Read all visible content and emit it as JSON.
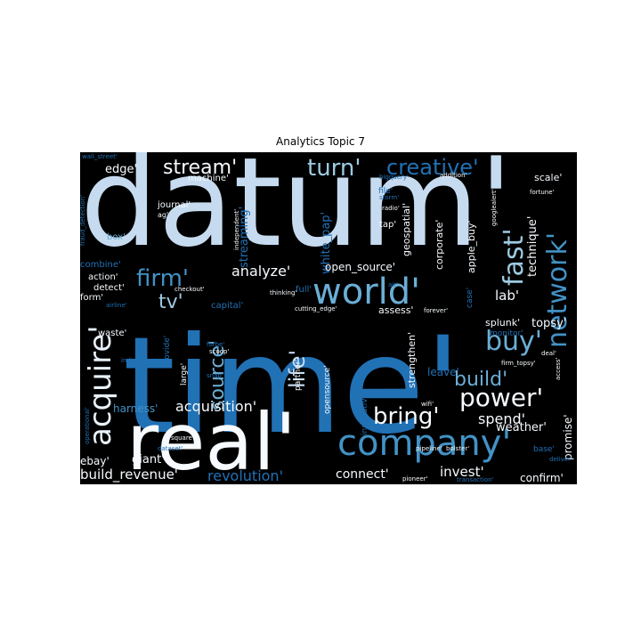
{
  "figure": {
    "title": "Analytics Topic 7"
  },
  "chart_data": {
    "type": "wordcloud",
    "title": "Analytics Topic 7",
    "background": "#000000",
    "palette": [
      "#08306b",
      "#2171b5",
      "#4292c6",
      "#9ecae1",
      "#c6dbef",
      "#ffffff"
    ],
    "words": [
      {
        "text": "datum'",
        "weight": 100,
        "color": "#c6dbef"
      },
      {
        "text": "time'",
        "weight": 98,
        "color": "#2171b5"
      },
      {
        "text": "real'",
        "weight": 70,
        "color": "#f7fbff"
      },
      {
        "text": "company'",
        "weight": 40,
        "color": "#4292c6"
      },
      {
        "text": "world'",
        "weight": 34,
        "color": "#6baed6"
      },
      {
        "text": "acquire'",
        "weight": 30,
        "color": "#e8f1fa"
      },
      {
        "text": "network'",
        "weight": 30,
        "color": "#4292c6"
      },
      {
        "text": "fast'",
        "weight": 28,
        "color": "#9ecae1"
      },
      {
        "text": "buy'",
        "weight": 28,
        "color": "#6baed6"
      },
      {
        "text": "power'",
        "weight": 26,
        "color": "#f7fbff"
      },
      {
        "text": "turn'",
        "weight": 24,
        "color": "#9ecae1"
      },
      {
        "text": "bring'",
        "weight": 24,
        "color": "#f7fbff"
      },
      {
        "text": "creative'",
        "weight": 22,
        "color": "#2171b5"
      },
      {
        "text": "firm'",
        "weight": 22,
        "color": "#4292c6"
      },
      {
        "text": "life'",
        "weight": 22,
        "color": "#c6dbef"
      },
      {
        "text": "build'",
        "weight": 22,
        "color": "#6baed6"
      },
      {
        "text": "stream'",
        "weight": 20,
        "color": "#f7fbff"
      },
      {
        "text": "source'",
        "weight": 20,
        "color": "#6baed6"
      },
      {
        "text": "tv'",
        "weight": 20,
        "color": "#9ecae1"
      },
      {
        "text": "acquisition'",
        "weight": 14,
        "color": "#f7fbff"
      },
      {
        "text": "analyze'",
        "weight": 13,
        "color": "#f7fbff"
      },
      {
        "text": "spend'",
        "weight": 14,
        "color": "#f7fbff"
      },
      {
        "text": "revolution'",
        "weight": 13,
        "color": "#2171b5"
      },
      {
        "text": "build_revenue'",
        "weight": 13,
        "color": "#f7fbff"
      },
      {
        "text": "connect'",
        "weight": 12,
        "color": "#f7fbff"
      },
      {
        "text": "invest'",
        "weight": 12,
        "color": "#f7fbff"
      },
      {
        "text": "weather'",
        "weight": 11,
        "color": "#f7fbff"
      },
      {
        "text": "promise'",
        "weight": 11,
        "color": "#f7fbff"
      },
      {
        "text": "technique'",
        "weight": 11,
        "color": "#f7fbff"
      },
      {
        "text": "topsy'",
        "weight": 11,
        "color": "#f7fbff"
      },
      {
        "text": "lab'",
        "weight": 12,
        "color": "#f7fbff"
      },
      {
        "text": "streaming'",
        "weight": 12,
        "color": "#2171b5"
      },
      {
        "text": "white_pap'",
        "weight": 12,
        "color": "#2171b5"
      },
      {
        "text": "open_source'",
        "weight": 11,
        "color": "#f7fbff"
      },
      {
        "text": "edge'",
        "weight": 11,
        "color": "#f7fbff"
      },
      {
        "text": "giant'",
        "weight": 11,
        "color": "#f7fbff"
      },
      {
        "text": "ebay'",
        "weight": 11,
        "color": "#f7fbff"
      },
      {
        "text": "harness'",
        "weight": 11,
        "color": "#4292c6"
      },
      {
        "text": "confirm'",
        "weight": 10,
        "color": "#f7fbff"
      },
      {
        "text": "leave'",
        "weight": 10,
        "color": "#2171b5"
      },
      {
        "text": "splunk'",
        "weight": 10,
        "color": "#f7fbff"
      },
      {
        "text": "assess'",
        "weight": 10,
        "color": "#f7fbff"
      },
      {
        "text": "strengthen'",
        "weight": 10,
        "color": "#f7fbff"
      },
      {
        "text": "geospatial'",
        "weight": 10,
        "color": "#f7fbff"
      },
      {
        "text": "corporate'",
        "weight": 9,
        "color": "#f7fbff"
      },
      {
        "text": "apple_buy'",
        "weight": 9,
        "color": "#f7fbff"
      },
      {
        "text": "scale'",
        "weight": 9,
        "color": "#f7fbff"
      },
      {
        "text": "machine'",
        "weight": 9,
        "color": "#f7fbff"
      },
      {
        "text": "journal'",
        "weight": 9,
        "color": "#f7fbff"
      },
      {
        "text": "box'",
        "weight": 9,
        "color": "#6baed6"
      },
      {
        "text": "combine'",
        "weight": 9,
        "color": "#2171b5"
      },
      {
        "text": "action'",
        "weight": 9,
        "color": "#f7fbff"
      },
      {
        "text": "detect'",
        "weight": 9,
        "color": "#f7fbff"
      },
      {
        "text": "form'",
        "weight": 9,
        "color": "#f7fbff"
      },
      {
        "text": "waste'",
        "weight": 9,
        "color": "#f7fbff"
      },
      {
        "text": "capital'",
        "weight": 9,
        "color": "#2171b5"
      },
      {
        "text": "full'",
        "weight": 9,
        "color": "#2171b5"
      },
      {
        "text": "partner'",
        "weight": 8,
        "color": "#f7fbff"
      },
      {
        "text": "opensource'",
        "weight": 8,
        "color": "#f7fbff"
      },
      {
        "text": "innovative'",
        "weight": 8,
        "color": "#2171b5"
      },
      {
        "text": "large'",
        "weight": 8,
        "color": "#f7fbff"
      },
      {
        "text": "provide'",
        "weight": 8,
        "color": "#2171b5"
      },
      {
        "text": "monitor'",
        "weight": 8,
        "color": "#2171b5"
      },
      {
        "text": "case'",
        "weight": 8,
        "color": "#2171b5"
      },
      {
        "text": "base'",
        "weight": 8,
        "color": "#2171b5"
      },
      {
        "text": "tap'",
        "weight": 8,
        "color": "#f7fbff"
      },
      {
        "text": "file'",
        "weight": 7,
        "color": "#2171b5"
      },
      {
        "text": "deal'",
        "weight": 6,
        "color": "#f7fbff"
      },
      {
        "text": "access'",
        "weight": 6,
        "color": "#f7fbff"
      },
      {
        "text": "deliver'",
        "weight": 6,
        "color": "#2171b5"
      },
      {
        "text": "independent'",
        "weight": 6,
        "color": "#f7fbff"
      },
      {
        "text": "cutting_edge'",
        "weight": 6,
        "color": "#f7fbff"
      },
      {
        "text": "checkout'",
        "weight": 6,
        "color": "#f7fbff"
      },
      {
        "text": "thinking'",
        "weight": 6,
        "color": "#f7fbff"
      },
      {
        "text": "forever'",
        "weight": 6,
        "color": "#f7fbff"
      },
      {
        "text": "airline'",
        "weight": 6,
        "color": "#2171b5"
      },
      {
        "text": "forbe'",
        "weight": 6,
        "color": "#2171b5"
      },
      {
        "text": "scoop'",
        "weight": 6,
        "color": "#f7fbff"
      },
      {
        "text": "snap'",
        "weight": 6,
        "color": "#2171b5"
      },
      {
        "text": "indian'",
        "weight": 6,
        "color": "#2171b5"
      },
      {
        "text": "wifi'",
        "weight": 6,
        "color": "#f7fbff"
      },
      {
        "text": "pipeline'",
        "weight": 6,
        "color": "#f7fbff"
      },
      {
        "text": "bolster'",
        "weight": 6,
        "color": "#f7fbff"
      },
      {
        "text": "square'",
        "weight": 6,
        "color": "#f7fbff"
      },
      {
        "text": "dataset'",
        "weight": 6,
        "color": "#2171b5"
      },
      {
        "text": "js'",
        "weight": 6,
        "color": "#f7fbff"
      },
      {
        "text": "operational'",
        "weight": 6,
        "color": "#2171b5"
      },
      {
        "text": "pioneer'",
        "weight": 6,
        "color": "#f7fbff"
      },
      {
        "text": "transaction'",
        "weight": 6,
        "color": "#2171b5"
      },
      {
        "text": "firm_topsy'",
        "weight": 6,
        "color": "#f7fbff"
      },
      {
        "text": "wall_street'",
        "weight": 6,
        "color": "#2171b5"
      },
      {
        "text": "fraud_detection'",
        "weight": 6,
        "color": "#2171b5"
      },
      {
        "text": "ag'",
        "weight": 6,
        "color": "#f7fbff"
      },
      {
        "text": "bigquery'",
        "weight": 6,
        "color": "#2171b5"
      },
      {
        "text": "addition'",
        "weight": 6,
        "color": "#f7fbff"
      },
      {
        "text": "storm'",
        "weight": 6,
        "color": "#2171b5"
      },
      {
        "text": "radio'",
        "weight": 6,
        "color": "#f7fbff"
      },
      {
        "text": "fortune'",
        "weight": 6,
        "color": "#f7fbff"
      },
      {
        "text": "googlealert'",
        "weight": 6,
        "color": "#f7fbff"
      },
      {
        "text": "air'",
        "weight": 6,
        "color": "#2171b5"
      }
    ]
  }
}
